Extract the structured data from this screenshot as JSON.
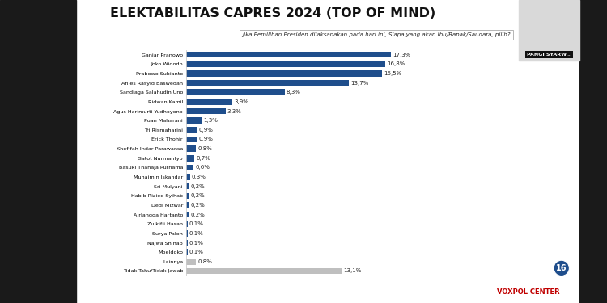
{
  "chart_data": {
    "type": "bar",
    "orientation": "horizontal",
    "title": "ELEKTABILITAS CAPRES 2024 (TOP OF MIND)",
    "subtitle": "Jika Pemilihan Presiden dilaksanakan pada hari ini, Siapa yang akan Ibu/Bapak/Saudara, pilih?",
    "annotations": [
      "PANGI SYARW...",
      "16",
      "VOXPOL CENTER"
    ],
    "categories": [
      "Ganjar Pranowo",
      "Joko Widodo",
      "Prabowo Subianto",
      "Anies Rasyid Baswedan",
      "Sandiaga Salahudin Uno",
      "Ridwan Kamil",
      "Agus Harimurti Yudhoyono",
      "Puan Maharani",
      "Tri Rismaharini",
      "Erick Thohir",
      "Khofifah Indar Parawansa",
      "Gatot Nurmantyo",
      "Basuki Thahaja Purnama",
      "Muhaimin Iskandar",
      "Sri Mulyani",
      "Habib Rizieq Syihab",
      "Dedi Mizwar",
      "Airlangga Hartanto",
      "Zulkifli Hasan",
      "Surya Paloh",
      "Najwa Shihab",
      "Moeldoko",
      "Lainnya",
      "Tidak Tahu/Tidak Jawab"
    ],
    "values": [
      17.3,
      16.8,
      16.5,
      13.7,
      8.3,
      3.9,
      3.3,
      1.3,
      0.9,
      0.9,
      0.8,
      0.7,
      0.6,
      0.3,
      0.2,
      0.2,
      0.2,
      0.2,
      0.1,
      0.1,
      0.1,
      0.1,
      0.8,
      13.1
    ],
    "value_labels": [
      "17,3%",
      "16,8%",
      "16,5%",
      "13,7%",
      "8,3%",
      "3,9%",
      "3,3%",
      "1,3%",
      "0,9%",
      "0,9%",
      "0,8%",
      "0,7%",
      "0,6%",
      "0,3%",
      "0,2%",
      "0,2%",
      "0,2%",
      "0,2%",
      "0,1%",
      "0,1%",
      "0,1%",
      "0,1%",
      "0,8%",
      "13,1%"
    ],
    "colors": [
      "#1f4e8c",
      "#1f4e8c",
      "#1f4e8c",
      "#1f4e8c",
      "#1f4e8c",
      "#1f4e8c",
      "#1f4e8c",
      "#1f4e8c",
      "#1f4e8c",
      "#1f4e8c",
      "#1f4e8c",
      "#1f4e8c",
      "#1f4e8c",
      "#1f4e8c",
      "#1f4e8c",
      "#1f4e8c",
      "#1f4e8c",
      "#1f4e8c",
      "#1f4e8c",
      "#1f4e8c",
      "#1f4e8c",
      "#1f4e8c",
      "#bfbfbf",
      "#bfbfbf"
    ],
    "xlim": [
      0,
      20
    ],
    "xticks": [],
    "grid": false,
    "data_labels": true,
    "tick_labels": "y"
  }
}
